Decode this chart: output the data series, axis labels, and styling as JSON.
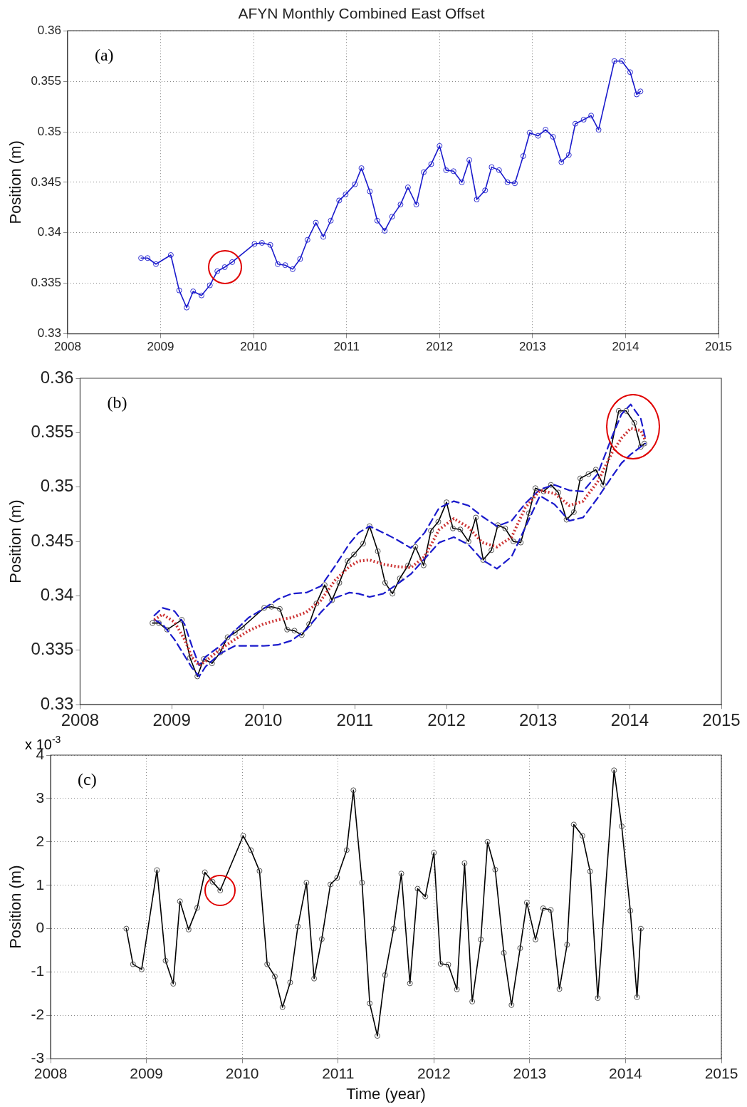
{
  "chart_data": [
    {
      "type": "line",
      "title": "AFYN Monthly Combined East Offset",
      "ylabel": "Position (m)",
      "annotations": [
        "(a)"
      ],
      "grid": true,
      "legend": false,
      "marker": "circle",
      "line_style": "solid",
      "x": [
        2008.79,
        2008.86,
        2008.95,
        2009.11,
        2009.2,
        2009.28,
        2009.35,
        2009.44,
        2009.53,
        2009.61,
        2009.69,
        2009.77,
        2010.01,
        2010.09,
        2010.18,
        2010.26,
        2010.34,
        2010.42,
        2010.5,
        2010.58,
        2010.67,
        2010.75,
        2010.83,
        2010.92,
        2010.99,
        2011.09,
        2011.16,
        2011.25,
        2011.33,
        2011.41,
        2011.49,
        2011.58,
        2011.66,
        2011.75,
        2011.83,
        2011.91,
        2012.0,
        2012.07,
        2012.15,
        2012.24,
        2012.32,
        2012.4,
        2012.49,
        2012.56,
        2012.64,
        2012.73,
        2012.81,
        2012.9,
        2012.97,
        2013.06,
        2013.14,
        2013.22,
        2013.31,
        2013.39,
        2013.46,
        2013.55,
        2013.63,
        2013.71,
        2013.88,
        2013.96,
        2014.05,
        2014.12,
        2014.16
      ],
      "series": [
        {
          "color": "#1a1acc",
          "values": [
            0.3375,
            0.3375,
            0.3369,
            0.3378,
            0.3343,
            0.3326,
            0.3342,
            0.3338,
            0.3348,
            0.3362,
            0.3366,
            0.3371,
            0.3389,
            0.339,
            0.3388,
            0.3369,
            0.3368,
            0.3364,
            0.3374,
            0.3393,
            0.341,
            0.3396,
            0.3412,
            0.3432,
            0.3438,
            0.3448,
            0.3464,
            0.3441,
            0.3412,
            0.3402,
            0.3416,
            0.3428,
            0.3445,
            0.3428,
            0.346,
            0.3468,
            0.3486,
            0.3462,
            0.3461,
            0.345,
            0.3472,
            0.3433,
            0.3442,
            0.3465,
            0.3462,
            0.345,
            0.3449,
            0.3476,
            0.3499,
            0.3496,
            0.3502,
            0.3495,
            0.347,
            0.3477,
            0.3508,
            0.3512,
            0.3516,
            0.3502,
            0.357,
            0.357,
            0.3559,
            0.3537,
            0.354
          ]
        }
      ],
      "xlim": [
        2008,
        2015
      ],
      "xticks": [
        2008,
        2009,
        2010,
        2011,
        2012,
        2013,
        2014,
        2015
      ],
      "ylim": [
        0.33,
        0.36
      ],
      "yticks": [
        0.33,
        0.335,
        0.34,
        0.345,
        0.35,
        0.355,
        0.36
      ]
    },
    {
      "type": "line",
      "ylabel": "Position (m)",
      "annotations": [
        "(b)"
      ],
      "legend": false,
      "x": [
        2008.79,
        2008.86,
        2008.95,
        2009.11,
        2009.2,
        2009.28,
        2009.35,
        2009.44,
        2009.53,
        2009.61,
        2009.69,
        2009.77,
        2010.01,
        2010.09,
        2010.18,
        2010.26,
        2010.34,
        2010.42,
        2010.5,
        2010.58,
        2010.67,
        2010.75,
        2010.83,
        2010.92,
        2010.99,
        2011.09,
        2011.16,
        2011.25,
        2011.33,
        2011.41,
        2011.49,
        2011.58,
        2011.66,
        2011.75,
        2011.83,
        2011.91,
        2012.0,
        2012.07,
        2012.15,
        2012.24,
        2012.32,
        2012.4,
        2012.49,
        2012.56,
        2012.64,
        2012.73,
        2012.81,
        2012.9,
        2012.97,
        2013.06,
        2013.14,
        2013.22,
        2013.31,
        2013.39,
        2013.46,
        2013.55,
        2013.63,
        2013.71,
        2013.88,
        2013.96,
        2014.05,
        2014.12,
        2014.16
      ],
      "series": [
        {
          "color": "#cc3333",
          "line_style": "dotted",
          "marker": "none",
          "x": [
            2008.81,
            2008.9,
            2009.03,
            2009.14,
            2009.22,
            2009.3,
            2009.37,
            2009.53,
            2009.69,
            2009.84,
            2010.0,
            2010.16,
            2010.31,
            2010.47,
            2010.63,
            2010.78,
            2010.94,
            2011.04,
            2011.16,
            2011.31,
            2011.45,
            2011.61,
            2011.76,
            2011.92,
            2012.08,
            2012.24,
            2012.39,
            2012.55,
            2012.71,
            2012.86,
            2013.02,
            2013.18,
            2013.34,
            2013.49,
            2013.65,
            2013.81,
            2013.91,
            2014.01,
            2014.12,
            2014.17
          ],
          "values": [
            0.3378,
            0.3383,
            0.3376,
            0.336,
            0.3344,
            0.3336,
            0.334,
            0.3351,
            0.336,
            0.3368,
            0.3374,
            0.3378,
            0.338,
            0.3385,
            0.3396,
            0.3414,
            0.3427,
            0.3432,
            0.3433,
            0.3429,
            0.3427,
            0.3426,
            0.3436,
            0.3461,
            0.3471,
            0.3463,
            0.3449,
            0.3445,
            0.3454,
            0.3481,
            0.3497,
            0.3494,
            0.3483,
            0.3487,
            0.3505,
            0.3532,
            0.3545,
            0.3554,
            0.3552,
            0.3543
          ]
        },
        {
          "color": "#1a1acc",
          "line_style": "dashed",
          "marker": "none",
          "x": [
            2008.81,
            2008.9,
            2009.03,
            2009.14,
            2009.22,
            2009.3,
            2009.37,
            2009.53,
            2009.69,
            2009.84,
            2010.0,
            2010.16,
            2010.31,
            2010.47,
            2010.63,
            2010.78,
            2010.94,
            2011.04,
            2011.16,
            2011.31,
            2011.45,
            2011.61,
            2011.76,
            2011.92,
            2012.08,
            2012.24,
            2012.39,
            2012.55,
            2012.71,
            2012.86,
            2013.02,
            2013.18,
            2013.34,
            2013.49,
            2013.65,
            2013.81,
            2013.91,
            2014.01,
            2014.12,
            2014.17
          ],
          "values": [
            0.3382,
            0.3389,
            0.3386,
            0.3374,
            0.3354,
            0.3336,
            0.3344,
            0.3354,
            0.3368,
            0.338,
            0.3388,
            0.3397,
            0.3402,
            0.3403,
            0.3409,
            0.3427,
            0.3448,
            0.3458,
            0.3464,
            0.3458,
            0.3452,
            0.3444,
            0.3458,
            0.3481,
            0.3487,
            0.3483,
            0.3473,
            0.3464,
            0.3469,
            0.3485,
            0.3498,
            0.3502,
            0.3497,
            0.3496,
            0.3512,
            0.3547,
            0.3567,
            0.3576,
            0.3563,
            0.3545
          ]
        },
        {
          "color": "#1a1acc",
          "line_style": "dashed",
          "marker": "none",
          "x": [
            2008.81,
            2008.9,
            2009.03,
            2009.14,
            2009.22,
            2009.3,
            2009.37,
            2009.53,
            2009.69,
            2009.84,
            2010.0,
            2010.16,
            2010.31,
            2010.47,
            2010.63,
            2010.78,
            2010.94,
            2011.04,
            2011.16,
            2011.31,
            2011.45,
            2011.61,
            2011.76,
            2011.92,
            2012.08,
            2012.24,
            2012.39,
            2012.55,
            2012.71,
            2012.86,
            2013.02,
            2013.18,
            2013.34,
            2013.49,
            2013.65,
            2013.81,
            2013.91,
            2014.01,
            2014.12,
            2014.17
          ],
          "values": [
            0.3378,
            0.3374,
            0.336,
            0.3345,
            0.3334,
            0.3326,
            0.3335,
            0.3347,
            0.3354,
            0.3354,
            0.3354,
            0.3355,
            0.3359,
            0.3369,
            0.3385,
            0.3398,
            0.3403,
            0.3402,
            0.3399,
            0.3402,
            0.341,
            0.342,
            0.3434,
            0.3449,
            0.3454,
            0.3447,
            0.3433,
            0.3425,
            0.3436,
            0.3463,
            0.3492,
            0.3484,
            0.3469,
            0.3472,
            0.349,
            0.351,
            0.3522,
            0.353,
            0.3537,
            0.354
          ]
        },
        {
          "color": "#000000",
          "line_style": "solid",
          "marker": "circle",
          "values": [
            0.3375,
            0.3375,
            0.3369,
            0.3378,
            0.3343,
            0.3326,
            0.3342,
            0.3338,
            0.3348,
            0.3362,
            0.3366,
            0.3371,
            0.3389,
            0.339,
            0.3388,
            0.3369,
            0.3368,
            0.3364,
            0.3374,
            0.3393,
            0.341,
            0.3396,
            0.3412,
            0.3432,
            0.3438,
            0.3448,
            0.3464,
            0.3441,
            0.3412,
            0.3402,
            0.3416,
            0.3428,
            0.3445,
            0.3428,
            0.346,
            0.3468,
            0.3486,
            0.3462,
            0.3461,
            0.345,
            0.3472,
            0.3433,
            0.3442,
            0.3465,
            0.3462,
            0.345,
            0.3449,
            0.3476,
            0.3499,
            0.3496,
            0.3502,
            0.3495,
            0.347,
            0.3477,
            0.3508,
            0.3512,
            0.3516,
            0.3502,
            0.357,
            0.357,
            0.3559,
            0.3537,
            0.354
          ]
        }
      ],
      "xlim": [
        2008,
        2015
      ],
      "xticks": [
        2008,
        2009,
        2010,
        2011,
        2012,
        2013,
        2014,
        2015
      ],
      "ylim": [
        0.33,
        0.36
      ],
      "yticks": [
        0.33,
        0.335,
        0.34,
        0.345,
        0.35,
        0.355,
        0.36
      ]
    },
    {
      "type": "line",
      "xlabel": "Time (year)",
      "ylabel": "Position (m)",
      "annotations": [
        "(c)",
        "x 10$^{-3}$"
      ],
      "grid": true,
      "legend": false,
      "marker": "circle",
      "line_style": "solid",
      "x": [
        2008.79,
        2008.86,
        2008.95,
        2009.11,
        2009.2,
        2009.28,
        2009.35,
        2009.44,
        2009.53,
        2009.61,
        2009.69,
        2009.77,
        2010.01,
        2010.09,
        2010.18,
        2010.26,
        2010.34,
        2010.42,
        2010.5,
        2010.58,
        2010.67,
        2010.75,
        2010.83,
        2010.92,
        2010.99,
        2011.09,
        2011.16,
        2011.25,
        2011.33,
        2011.41,
        2011.49,
        2011.58,
        2011.66,
        2011.75,
        2011.83,
        2011.91,
        2012.0,
        2012.07,
        2012.15,
        2012.24,
        2012.32,
        2012.4,
        2012.49,
        2012.56,
        2012.64,
        2012.73,
        2012.81,
        2012.9,
        2012.97,
        2013.06,
        2013.14,
        2013.22,
        2013.31,
        2013.39,
        2013.46,
        2013.55,
        2013.63,
        2013.71,
        2013.88,
        2013.96,
        2014.05,
        2014.12,
        2014.16
      ],
      "series": [
        {
          "color": "#000000",
          "values": [
            0,
            -0.82,
            -0.94,
            1.35,
            -0.74,
            -1.27,
            0.63,
            -0.02,
            0.48,
            1.3,
            1.08,
            0.88,
            2.14,
            1.81,
            1.33,
            -0.82,
            -1.1,
            -1.81,
            -1.24,
            0.05,
            1.06,
            -1.15,
            -0.24,
            1.02,
            1.17,
            1.81,
            3.19,
            1.06,
            -1.72,
            -2.47,
            -1.07,
            0,
            1.27,
            -1.26,
            0.92,
            0.74,
            1.75,
            -0.81,
            -0.83,
            -1.4,
            1.51,
            -1.68,
            -0.25,
            2.0,
            1.36,
            -0.56,
            -1.76,
            -0.45,
            0.6,
            -0.25,
            0.47,
            0.43,
            -1.39,
            -0.37,
            2.4,
            2.14,
            1.32,
            -1.6,
            3.65,
            2.36,
            0.41,
            -1.58,
            0
          ]
        }
      ],
      "xlim": [
        2008,
        2015
      ],
      "xticks": [
        2008,
        2009,
        2010,
        2011,
        2012,
        2013,
        2014,
        2015
      ],
      "ylim": [
        -3,
        4
      ],
      "yticks": [
        -3,
        -2,
        -1,
        0,
        1,
        2,
        3,
        4
      ]
    }
  ]
}
